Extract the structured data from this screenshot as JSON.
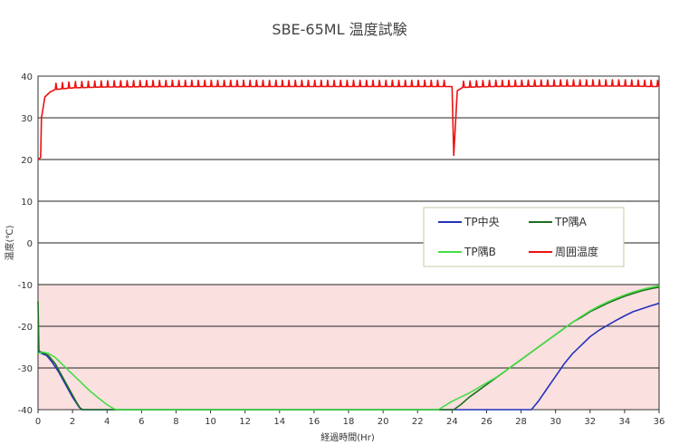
{
  "chart_data": {
    "type": "line",
    "title": "SBE-65ML 温度試験",
    "xlabel": "経過時間(Hr)",
    "ylabel": "温度(℃)",
    "xlim": [
      0,
      36
    ],
    "ylim": [
      -40,
      40
    ],
    "x_ticks": [
      "0",
      "2",
      "4",
      "6",
      "8",
      "10",
      "12",
      "14",
      "16",
      "18",
      "20",
      "22",
      "24",
      "26",
      "28",
      "30",
      "32",
      "34",
      "36"
    ],
    "y_ticks": [
      "40",
      "30",
      "20",
      "10",
      "0",
      "-10",
      "-20",
      "-30",
      "-40"
    ],
    "grid": "horizontal",
    "legend_position": "center-right",
    "shaded_band": {
      "from": -40,
      "to": -10,
      "color": "#fbe0e0",
      "border": "#c0504d"
    },
    "series": [
      {
        "name": "TP中央",
        "color": "#2233bb",
        "points": [
          [
            0,
            -26
          ],
          [
            0.2,
            -26.5
          ],
          [
            0.5,
            -27
          ],
          [
            0.8,
            -28.5
          ],
          [
            1.2,
            -31
          ],
          [
            1.6,
            -34
          ],
          [
            2.0,
            -37
          ],
          [
            2.4,
            -39.5
          ],
          [
            2.6,
            -40
          ],
          [
            28.6,
            -40
          ],
          [
            29,
            -38
          ],
          [
            29.5,
            -35
          ],
          [
            30,
            -32
          ],
          [
            30.5,
            -29
          ],
          [
            31,
            -26.5
          ],
          [
            31.5,
            -24.5
          ],
          [
            32,
            -22.5
          ],
          [
            32.5,
            -21
          ],
          [
            33,
            -19.8
          ],
          [
            33.5,
            -18.6
          ],
          [
            34,
            -17.5
          ],
          [
            34.5,
            -16.5
          ],
          [
            35,
            -15.8
          ],
          [
            35.5,
            -15.1
          ],
          [
            36,
            -14.5
          ]
        ]
      },
      {
        "name": "TP隅A",
        "color": "#1f6e1f",
        "points": [
          [
            0,
            -14
          ],
          [
            0.05,
            -26
          ],
          [
            0.3,
            -26.3
          ],
          [
            0.6,
            -27
          ],
          [
            1.0,
            -29
          ],
          [
            1.4,
            -32
          ],
          [
            1.8,
            -35
          ],
          [
            2.2,
            -38
          ],
          [
            2.5,
            -40
          ],
          [
            24.1,
            -40
          ],
          [
            24.5,
            -38.8
          ],
          [
            25,
            -37
          ],
          [
            25.5,
            -35.5
          ],
          [
            26,
            -34
          ],
          [
            26.5,
            -32.5
          ],
          [
            27,
            -31
          ],
          [
            27.5,
            -29.5
          ],
          [
            28,
            -28
          ],
          [
            28.5,
            -26.5
          ],
          [
            29,
            -25
          ],
          [
            29.5,
            -23.5
          ],
          [
            30,
            -22
          ],
          [
            30.5,
            -20.5
          ],
          [
            31,
            -19
          ],
          [
            31.5,
            -17.8
          ],
          [
            32,
            -16.5
          ],
          [
            32.5,
            -15.5
          ],
          [
            33,
            -14.5
          ],
          [
            33.5,
            -13.6
          ],
          [
            34,
            -12.8
          ],
          [
            34.5,
            -12.1
          ],
          [
            35,
            -11.5
          ],
          [
            35.5,
            -11
          ],
          [
            36,
            -10.6
          ]
        ]
      },
      {
        "name": "TP隅B",
        "color": "#44dd44",
        "points": [
          [
            0,
            -26.5
          ],
          [
            0.3,
            -26.2
          ],
          [
            0.6,
            -26.5
          ],
          [
            1.0,
            -27.5
          ],
          [
            1.5,
            -29.5
          ],
          [
            2.0,
            -31.5
          ],
          [
            2.5,
            -33.5
          ],
          [
            3.0,
            -35.5
          ],
          [
            3.5,
            -37.2
          ],
          [
            4.0,
            -38.8
          ],
          [
            4.4,
            -39.8
          ],
          [
            4.6,
            -40
          ],
          [
            23.2,
            -40
          ],
          [
            23.6,
            -39
          ],
          [
            24,
            -38
          ],
          [
            24.5,
            -37
          ],
          [
            25,
            -36
          ],
          [
            25.5,
            -34.8
          ],
          [
            26,
            -33.6
          ],
          [
            26.5,
            -32.4
          ],
          [
            27,
            -31
          ],
          [
            27.5,
            -29.5
          ],
          [
            28,
            -28
          ],
          [
            28.5,
            -26.5
          ],
          [
            29,
            -25
          ],
          [
            29.5,
            -23.5
          ],
          [
            30,
            -22
          ],
          [
            30.5,
            -20.5
          ],
          [
            31,
            -19
          ],
          [
            31.5,
            -17.6
          ],
          [
            32,
            -16.3
          ],
          [
            32.5,
            -15.2
          ],
          [
            33,
            -14.2
          ],
          [
            33.5,
            -13.3
          ],
          [
            34,
            -12.5
          ],
          [
            34.5,
            -11.8
          ],
          [
            35,
            -11.2
          ],
          [
            35.5,
            -10.7
          ],
          [
            36,
            -10.3
          ]
        ]
      },
      {
        "name": "周囲温度",
        "color": "#ee1111",
        "points": [
          [
            0,
            20
          ],
          [
            0.15,
            20.5
          ],
          [
            0.2,
            30
          ],
          [
            0.4,
            35
          ],
          [
            0.7,
            36.2
          ],
          [
            1.0,
            36.8
          ],
          [
            2,
            37.2
          ],
          [
            4,
            37.4
          ],
          [
            8,
            37.5
          ],
          [
            12,
            37.5
          ],
          [
            16,
            37.5
          ],
          [
            20,
            37.5
          ],
          [
            24,
            37.5
          ],
          [
            24.1,
            21
          ],
          [
            24.3,
            36.5
          ],
          [
            24.6,
            37.3
          ],
          [
            26,
            37.5
          ],
          [
            30,
            37.6
          ],
          [
            34,
            37.6
          ],
          [
            36,
            37.5
          ]
        ],
        "spikes_every": 0.375,
        "spike_height": 1.5
      }
    ]
  }
}
